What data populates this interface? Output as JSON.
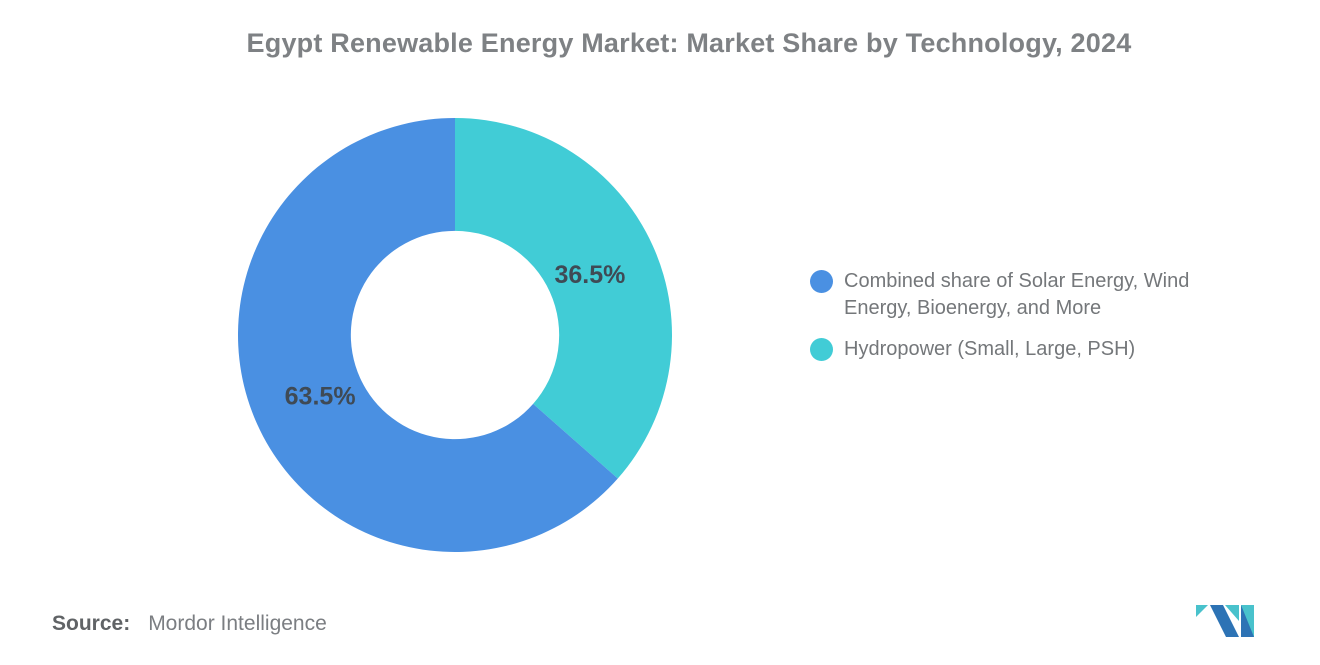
{
  "title": "Egypt Renewable Energy Market: Market Share by Technology, 2024",
  "chart_data": {
    "type": "pie",
    "subtype": "donut",
    "title": "Egypt Renewable Energy Market: Market Share by Technology, 2024",
    "start_angle_deg": 0,
    "direction": "clockwise",
    "inner_radius_ratio": 0.48,
    "legend_position": "right",
    "slices": [
      {
        "label": "Hydropower (Small, Large, PSH)",
        "value": 36.5,
        "data_label": "36.5%",
        "color": "#41ccd6"
      },
      {
        "label": "Combined share of Solar Energy, Wind Energy, Bioenergy, and More",
        "value": 63.5,
        "data_label": "63.5%",
        "color": "#4a90e2"
      }
    ]
  },
  "legend": {
    "items": [
      {
        "label": "Combined share of Solar Energy, Wind Energy, Bioenergy, and More",
        "color": "#4a90e2"
      },
      {
        "label": "Hydropower (Small, Large, PSH)",
        "color": "#41ccd6"
      }
    ]
  },
  "source": {
    "label": "Source:",
    "text": "Mordor Intelligence"
  },
  "logo": {
    "name": "mordor-intelligence-logo",
    "teal": "#49c2cc",
    "blue": "#2d73b5"
  },
  "colors": {
    "label_text": "#3f4a55",
    "title_text": "#7e8184",
    "legend_text": "#74777a"
  }
}
